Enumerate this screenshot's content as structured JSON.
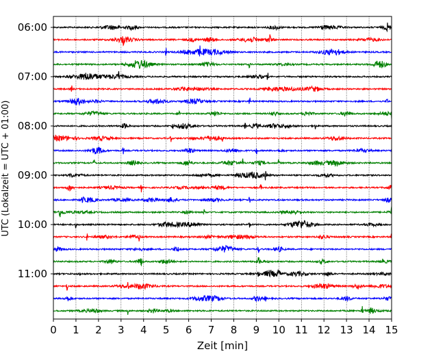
{
  "chart_data": {
    "type": "line",
    "title": "",
    "xlabel": "Zeit  [min]",
    "ylabel": "UTC (Lokalzeit = UTC + 01:00)",
    "xlim": [
      0,
      15
    ],
    "x_ticks": [
      "0",
      "1",
      "2",
      "3",
      "4",
      "5",
      "6",
      "7",
      "8",
      "9",
      "10",
      "11",
      "12",
      "13",
      "14",
      "15"
    ],
    "y_tick_labels": [
      "06:00",
      "07:00",
      "08:00",
      "09:00",
      "10:00",
      "11:00"
    ],
    "grid": "vertical dotted lines at each minute",
    "color_cycle": [
      "#000000",
      "#ff0000",
      "#0000ff",
      "#008000"
    ],
    "traces": [
      {
        "start": "06:00",
        "color": "#000000",
        "events_min": [
          14.8
        ]
      },
      {
        "start": "06:15",
        "color": "#ff0000",
        "events_min": [
          3.1,
          9.6
        ]
      },
      {
        "start": "06:30",
        "color": "#0000ff",
        "events_min": [
          5.0,
          6.5
        ]
      },
      {
        "start": "06:45",
        "color": "#008000",
        "events_min": [
          8.7
        ]
      },
      {
        "start": "07:00",
        "color": "#000000",
        "events_min": [
          2.9,
          9.5
        ]
      },
      {
        "start": "07:15",
        "color": "#ff0000",
        "events_min": [
          0.8
        ]
      },
      {
        "start": "07:30",
        "color": "#0000ff",
        "events_min": [
          8.7,
          14.8
        ]
      },
      {
        "start": "07:45",
        "color": "#008000",
        "events_min": [
          5.6,
          15.0
        ]
      },
      {
        "start": "08:00",
        "color": "#000000",
        "events_min": [
          5.3,
          8.5,
          11.6
        ]
      },
      {
        "start": "08:15",
        "color": "#ff0000",
        "events_min": [
          2.5,
          5.2,
          7.5
        ]
      },
      {
        "start": "08:30",
        "color": "#0000ff",
        "events_min": [
          3.1,
          9.0
        ]
      },
      {
        "start": "08:45",
        "color": "#008000",
        "events_min": [
          1.8,
          8.4,
          10.0
        ]
      },
      {
        "start": "09:00",
        "color": "#000000",
        "events_min": [
          0.8,
          9.4
        ]
      },
      {
        "start": "09:15",
        "color": "#ff0000",
        "events_min": [
          0.7,
          3.9,
          9.2
        ]
      },
      {
        "start": "09:30",
        "color": "#0000ff",
        "events_min": [
          1.3,
          8.7
        ]
      },
      {
        "start": "09:45",
        "color": "#008000",
        "events_min": [
          0.3,
          6.7,
          15.0
        ]
      },
      {
        "start": "10:00",
        "color": "#000000",
        "events_min": [
          1.0,
          8.7
        ]
      },
      {
        "start": "10:15",
        "color": "#ff0000",
        "events_min": [
          1.5,
          3.8,
          15.0
        ]
      },
      {
        "start": "10:30",
        "color": "#0000ff",
        "events_min": [
          9.1
        ]
      },
      {
        "start": "10:45",
        "color": "#008000",
        "events_min": [
          3.9,
          9.1,
          14.6
        ]
      },
      {
        "start": "11:00",
        "color": "#000000",
        "events_min": [
          1.2,
          9.1,
          10.0
        ]
      },
      {
        "start": "11:15",
        "color": "#ff0000",
        "events_min": [
          0.6,
          3.3,
          13.5
        ]
      },
      {
        "start": "11:30",
        "color": "#0000ff",
        "events_min": [
          9.4
        ]
      },
      {
        "start": "11:45",
        "color": "#008000",
        "events_min": [
          3.3,
          13.7
        ]
      }
    ]
  }
}
